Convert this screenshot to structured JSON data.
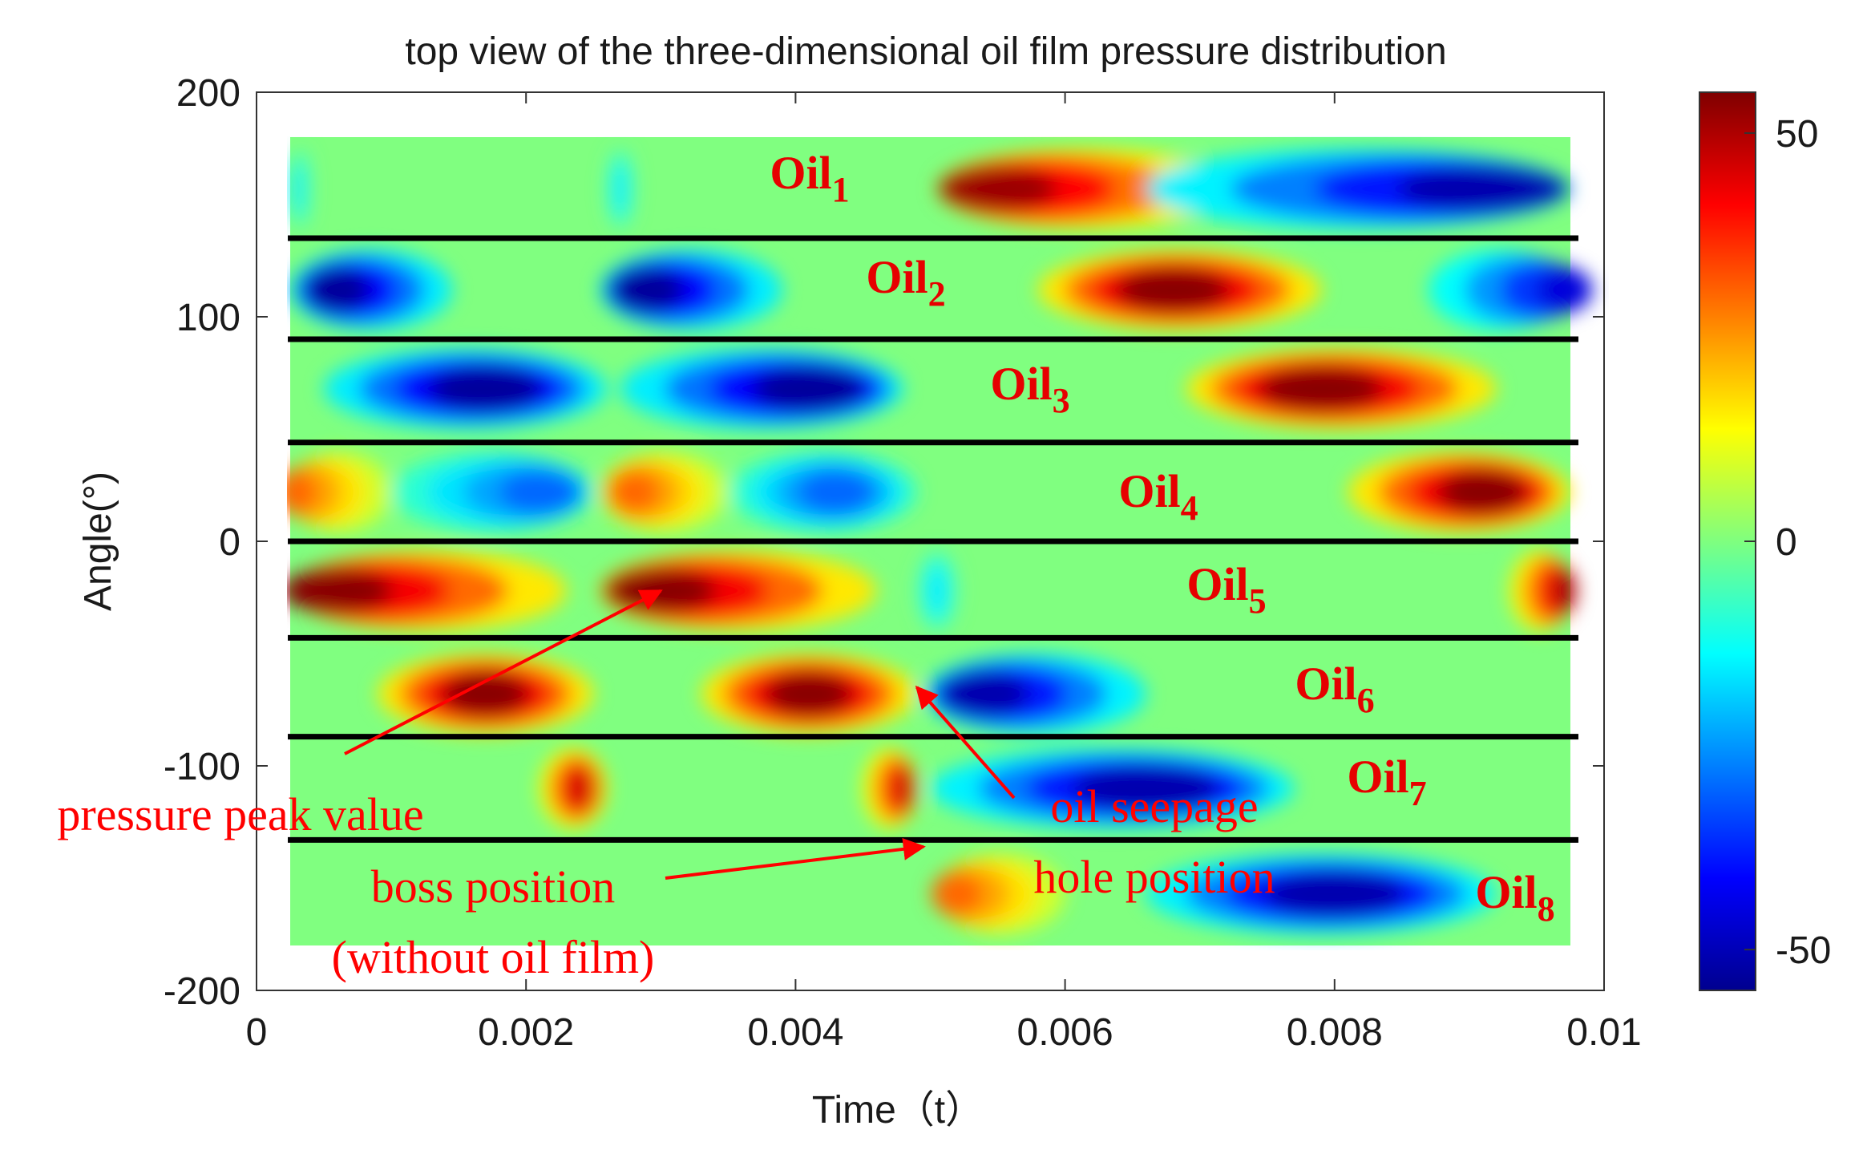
{
  "chart_data": {
    "type": "heatmap",
    "title": "top view of the three-dimensional oil film pressure distribution",
    "xlabel": "Time（t）",
    "ylabel": "Angle(°)",
    "xlim": [
      0,
      0.01
    ],
    "ylim": [
      -200,
      200
    ],
    "data_extent": {
      "x": [
        0.00025,
        0.00975
      ],
      "y": [
        -180,
        180
      ]
    },
    "xticks": [
      0,
      0.002,
      0.004,
      0.006,
      0.008,
      0.01
    ],
    "xtick_labels": [
      "0",
      "0.002",
      "0.004",
      "0.006",
      "0.008",
      "0.01"
    ],
    "yticks": [
      -200,
      -100,
      0,
      100,
      200
    ],
    "ytick_labels": [
      "-200",
      "-100",
      "0",
      "100",
      "200"
    ],
    "colorbar": {
      "range": [
        -55,
        55
      ],
      "ticks": [
        -50,
        0,
        50
      ],
      "tick_labels": [
        "-50",
        "0",
        "50"
      ],
      "colormap": "jet"
    },
    "band_separators_deg": [
      135,
      90,
      44,
      0,
      -43,
      -87,
      -133
    ],
    "bands": [
      {
        "name": "Oil",
        "sub": "1",
        "center_deg": 157,
        "features": [
          {
            "t_start": 0.00505,
            "t_end": 0.00725,
            "t_peak": 0.0055,
            "peak": 52
          },
          {
            "t_start": 0.0066,
            "t_end": 0.00975,
            "t_peak": 0.0091,
            "peak": -50
          },
          {
            "t_start": 0.00025,
            "t_end": 0.0004,
            "t_peak": 0.0003,
            "peak": -16
          },
          {
            "t_start": 0.0026,
            "t_end": 0.0028,
            "t_peak": 0.0027,
            "peak": -16
          }
        ]
      },
      {
        "name": "Oil",
        "sub": "2",
        "center_deg": 112,
        "features": [
          {
            "t_start": 0.00025,
            "t_end": 0.00145,
            "t_peak": 0.0006,
            "peak": -52
          },
          {
            "t_start": 0.00255,
            "t_end": 0.0039,
            "t_peak": 0.0029,
            "peak": -52
          },
          {
            "t_start": 0.0058,
            "t_end": 0.0079,
            "t_peak": 0.0068,
            "peak": 54
          },
          {
            "t_start": 0.0087,
            "t_end": 0.00975,
            "t_peak": 0.0097,
            "peak": -45
          }
        ]
      },
      {
        "name": "Oil",
        "sub": "3",
        "center_deg": 68,
        "features": [
          {
            "t_start": 0.0005,
            "t_end": 0.0026,
            "t_peak": 0.0017,
            "peak": -52
          },
          {
            "t_start": 0.0027,
            "t_end": 0.0048,
            "t_peak": 0.0041,
            "peak": -52
          },
          {
            "t_start": 0.0069,
            "t_end": 0.0092,
            "t_peak": 0.0079,
            "peak": 54
          }
        ]
      },
      {
        "name": "Oil",
        "sub": "4",
        "center_deg": 22,
        "features": [
          {
            "t_start": 0.00025,
            "t_end": 0.001,
            "t_peak": 0.0003,
            "peak": 30
          },
          {
            "t_start": 0.001,
            "t_end": 0.0025,
            "t_peak": 0.0021,
            "peak": -30
          },
          {
            "t_start": 0.00255,
            "t_end": 0.0035,
            "t_peak": 0.0028,
            "peak": 30
          },
          {
            "t_start": 0.0035,
            "t_end": 0.0049,
            "t_peak": 0.0043,
            "peak": -30
          },
          {
            "t_start": 0.0081,
            "t_end": 0.00975,
            "t_peak": 0.0091,
            "peak": 54
          }
        ]
      },
      {
        "name": "Oil",
        "sub": "5",
        "center_deg": -22,
        "features": [
          {
            "t_start": 0.00025,
            "t_end": 0.0023,
            "t_peak": 0.0006,
            "peak": 54
          },
          {
            "t_start": 0.00255,
            "t_end": 0.0046,
            "t_peak": 0.003,
            "peak": 54
          },
          {
            "t_start": 0.0049,
            "t_end": 0.0052,
            "t_peak": 0.00505,
            "peak": -16
          },
          {
            "t_start": 0.0093,
            "t_end": 0.00975,
            "t_peak": 0.0097,
            "peak": 50
          }
        ]
      },
      {
        "name": "Oil",
        "sub": "6",
        "center_deg": -68,
        "features": [
          {
            "t_start": 0.0009,
            "t_end": 0.0025,
            "t_peak": 0.0017,
            "peak": 54
          },
          {
            "t_start": 0.0033,
            "t_end": 0.0049,
            "t_peak": 0.0041,
            "peak": 54
          },
          {
            "t_start": 0.00495,
            "t_end": 0.0066,
            "t_peak": 0.0054,
            "peak": -50
          }
        ]
      },
      {
        "name": "Oil",
        "sub": "7",
        "center_deg": -110,
        "features": [
          {
            "t_start": 0.0021,
            "t_end": 0.0026,
            "t_peak": 0.0024,
            "peak": 46
          },
          {
            "t_start": 0.0045,
            "t_end": 0.0049,
            "t_peak": 0.0048,
            "peak": 46
          },
          {
            "t_start": 0.005,
            "t_end": 0.0077,
            "t_peak": 0.0066,
            "peak": -50
          }
        ]
      },
      {
        "name": "Oil",
        "sub": "8",
        "center_deg": -157,
        "features": [
          {
            "t_start": 0.00505,
            "t_end": 0.006,
            "t_peak": 0.0052,
            "peak": 30
          },
          {
            "t_start": 0.0066,
            "t_end": 0.0092,
            "t_peak": 0.008,
            "peak": -50
          }
        ]
      }
    ],
    "annotations": [
      {
        "key": "peak",
        "lines": [
          "pressure peak value"
        ],
        "arrow_to": {
          "t": 0.003,
          "deg": -22
        }
      },
      {
        "key": "seepage",
        "lines": [
          "oil seepage",
          "hole position"
        ],
        "arrow_to": {
          "t": 0.0049,
          "deg": -65
        }
      },
      {
        "key": "boss",
        "lines": [
          "boss position",
          "(without oil film)"
        ],
        "arrow_to": {
          "t": 0.00495,
          "deg": -136
        }
      }
    ]
  }
}
